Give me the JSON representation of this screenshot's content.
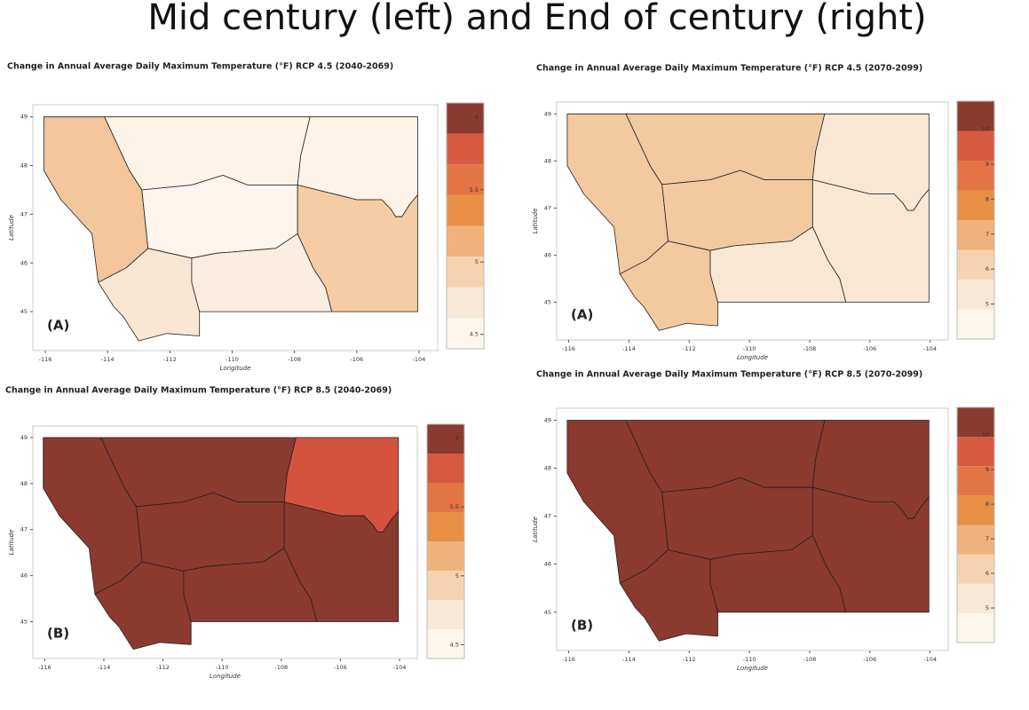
{
  "title": "Mid century (left)  and End of century (right)",
  "panels": [
    {
      "title": "Change in Annual Average Daily Maximum Temperature (°F) RCP 4.5 (2040-2069)",
      "label": "(A)",
      "xlabel": "Longitude",
      "ylabel": "Latitude",
      "xlim": [
        -116.4,
        -103.4
      ],
      "ylim": [
        44.2,
        49.25
      ],
      "xticks": [
        -116,
        -114,
        -112,
        -110,
        -108,
        -106,
        -104
      ],
      "yticks": [
        45,
        46,
        47,
        48,
        49
      ],
      "region_colors": [
        "#f2c59a",
        "#f8e6d2",
        "#fdf3e7",
        "#fef6ee",
        "#fbeee1",
        "#fdf3e7",
        "#f5cca3"
      ],
      "colorbar": {
        "range": [
          4.4,
          6.1
        ],
        "ticks": [
          4.5,
          5,
          5.5,
          6
        ],
        "colors": [
          "#fdf6ec",
          "#f9e8d5",
          "#f6d3b0",
          "#f0b27a",
          "#e88f46",
          "#e37544",
          "#d65a40",
          "#8b3a30"
        ]
      }
    },
    {
      "title": "Change in Annual Average Daily Maximum Temperature (°F) RCP 4.5 (2070-2099)",
      "label": "(A)",
      "xlabel": "Longitude",
      "ylabel": "Latitude",
      "xlim": [
        -116.4,
        -103.4
      ],
      "ylim": [
        44.2,
        49.25
      ],
      "xticks": [
        -116,
        -114,
        -112,
        -110,
        -108,
        -106,
        -104
      ],
      "yticks": [
        45,
        46,
        47,
        48,
        49
      ],
      "region_colors": [
        "#f3c9a0",
        "#f3c9a0",
        "#f3c9a0",
        "#f3c9a0",
        "#f9e7d4",
        "#f9e7d4",
        "#f9e7d4"
      ],
      "colorbar": {
        "range": [
          4,
          10.8
        ],
        "ticks": [
          5,
          6,
          7,
          8,
          9,
          10
        ],
        "colors": [
          "#fdf6ec",
          "#f9e8d5",
          "#f6d3b0",
          "#f0b27a",
          "#e88f46",
          "#e37544",
          "#d65a40",
          "#8b3a30"
        ]
      }
    },
    {
      "title": "Change in Annual Average Daily Maximum Temperature (°F) RCP 8.5 (2040-2069)",
      "label": "(B)",
      "xlabel": "Longitude",
      "ylabel": "Latitude",
      "xlim": [
        -116.4,
        -103.4
      ],
      "ylim": [
        44.2,
        49.25
      ],
      "xticks": [
        -116,
        -114,
        -112,
        -110,
        -108,
        -106,
        -104
      ],
      "yticks": [
        45,
        46,
        47,
        48,
        49
      ],
      "region_colors": [
        "#8b3a30",
        "#8b3a30",
        "#8b3a30",
        "#8b3a30",
        "#8b3a30",
        "#d4533f",
        "#8b3a30"
      ],
      "colorbar": {
        "range": [
          4.4,
          6.1
        ],
        "ticks": [
          4.5,
          5,
          5.5,
          6
        ],
        "colors": [
          "#fdf6ec",
          "#f9e8d5",
          "#f6d3b0",
          "#f0b27a",
          "#e88f46",
          "#e37544",
          "#d65a40",
          "#8b3a30"
        ]
      }
    },
    {
      "title": "Change in Annual Average Daily Maximum Temperature (°F) RCP 8.5 (2070-2099)",
      "label": "(B)",
      "xlabel": "Longitude",
      "ylabel": "Latitude",
      "xlim": [
        -116.4,
        -103.4
      ],
      "ylim": [
        44.2,
        49.25
      ],
      "xticks": [
        -116,
        -114,
        -112,
        -110,
        -108,
        -106,
        -104
      ],
      "yticks": [
        45,
        46,
        47,
        48,
        49
      ],
      "region_colors": [
        "#8b3a30",
        "#8b3a30",
        "#8b3a30",
        "#8b3a30",
        "#8b3a30",
        "#8b3a30",
        "#8b3a30"
      ],
      "colorbar": {
        "range": [
          4,
          10.8
        ],
        "ticks": [
          5,
          6,
          7,
          8,
          9,
          10
        ],
        "colors": [
          "#fdf6ec",
          "#f9e8d5",
          "#f6d3b0",
          "#f0b27a",
          "#e88f46",
          "#e37544",
          "#d65a40",
          "#8b3a30"
        ]
      }
    }
  ]
}
